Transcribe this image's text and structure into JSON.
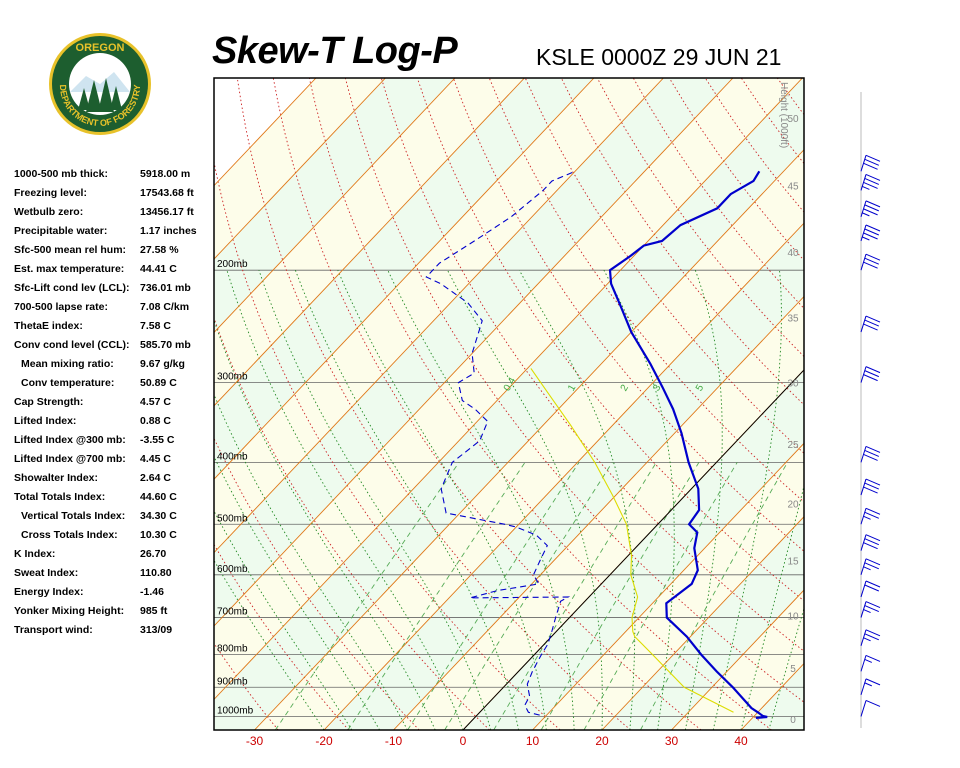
{
  "header": {
    "title": "Skew-T Log-P",
    "station": "KSLE 0000Z 29 JUN 21",
    "logo_top": "OREGON",
    "logo_bottom": "DEPARTMENT OF FORESTRY"
  },
  "indices": [
    {
      "label": "1000-500 mb thick:",
      "value": "5918.00 m"
    },
    {
      "label": "Freezing level:",
      "value": "17543.68 ft"
    },
    {
      "label": "Wetbulb zero:",
      "value": "13456.17 ft"
    },
    {
      "label": "Precipitable water:",
      "value": "1.17 inches"
    },
    {
      "label": "Sfc-500 mean rel hum:",
      "value": "27.58 %"
    },
    {
      "label": "Est. max temperature:",
      "value": "44.41 C"
    },
    {
      "label": "Sfc-Lift cond lev (LCL):",
      "value": "736.01 mb"
    },
    {
      "label": "700-500 lapse rate:",
      "value": "7.08 C/km"
    },
    {
      "label": "ThetaE index:",
      "value": "7.58 C"
    },
    {
      "label": "Conv cond level (CCL):",
      "value": "585.70 mb"
    },
    {
      "label": "Mean mixing ratio:",
      "value": "9.67 g/kg",
      "sub": true
    },
    {
      "label": "Conv temperature:",
      "value": "50.89 C",
      "sub": true
    },
    {
      "label": "Cap Strength:",
      "value": "4.57 C"
    },
    {
      "label": "Lifted Index:",
      "value": "0.88 C"
    },
    {
      "label": "Lifted Index @300 mb:",
      "value": "-3.55 C"
    },
    {
      "label": "Lifted Index @700 mb:",
      "value": "4.45 C"
    },
    {
      "label": "Showalter Index:",
      "value": "2.64 C"
    },
    {
      "label": "Total Totals Index:",
      "value": "44.60 C"
    },
    {
      "label": "Vertical Totals Index:",
      "value": "34.30 C",
      "sub": true
    },
    {
      "label": "Cross Totals Index:",
      "value": "10.30 C",
      "sub": true
    },
    {
      "label": "K Index:",
      "value": "26.70"
    },
    {
      "label": "Sweat Index:",
      "value": "110.80"
    },
    {
      "label": "Energy Index:",
      "value": "-1.46"
    },
    {
      "label": "Yonker Mixing Height:",
      "value": "985 ft"
    },
    {
      "label": "Transport wind:",
      "value": "313/09"
    }
  ],
  "chart_data": {
    "type": "line",
    "subtype": "skew-t log-p diagram",
    "x_ticks": [
      -30,
      -20,
      -10,
      0,
      10,
      20,
      30,
      40
    ],
    "pressure_levels": [
      {
        "p": 200,
        "label": "200mb"
      },
      {
        "p": 300,
        "label": "300mb"
      },
      {
        "p": 400,
        "label": "400mb"
      },
      {
        "p": 500,
        "label": "500mb"
      },
      {
        "p": 600,
        "label": "600mb"
      },
      {
        "p": 700,
        "label": "700mb"
      },
      {
        "p": 800,
        "label": "800mb"
      },
      {
        "p": 900,
        "label": "900mb"
      },
      {
        "p": 1000,
        "label": "1000mb"
      }
    ],
    "height_axis": {
      "label": "Height (1000ft)",
      "ticks": [
        {
          "value": 0,
          "p": 1013
        },
        {
          "value": 5,
          "p": 843
        },
        {
          "value": 10,
          "p": 697
        },
        {
          "value": 15,
          "p": 572
        },
        {
          "value": 20,
          "p": 466
        },
        {
          "value": 25,
          "p": 376
        },
        {
          "value": 30,
          "p": 301
        },
        {
          "value": 35,
          "p": 238
        },
        {
          "value": 40,
          "p": 188
        },
        {
          "value": 45,
          "p": 148
        },
        {
          "value": 50,
          "p": 116
        }
      ]
    },
    "mixing_ratio_labels": [
      "0.4",
      "1",
      "2",
      "3",
      "5"
    ],
    "series": [
      {
        "role": "temperature",
        "color": "#0000cc",
        "style": "solid",
        "points": [
          [
            1005,
            40.5
          ],
          [
            1002,
            42.0
          ],
          [
            998,
            41.2
          ],
          [
            985,
            40.0
          ],
          [
            970,
            38.5
          ],
          [
            900,
            33.0
          ],
          [
            850,
            28.5
          ],
          [
            800,
            24.0
          ],
          [
            750,
            19.5
          ],
          [
            700,
            14.0
          ],
          [
            665,
            12.0
          ],
          [
            620,
            13.0
          ],
          [
            590,
            12.0
          ],
          [
            545,
            8.5
          ],
          [
            515,
            6.8
          ],
          [
            500,
            4.5
          ],
          [
            475,
            4.0
          ],
          [
            440,
            1.0
          ],
          [
            400,
            -4.0
          ],
          [
            360,
            -9.0
          ],
          [
            330,
            -13.5
          ],
          [
            305,
            -18.0
          ],
          [
            280,
            -23.0
          ],
          [
            250,
            -30.0
          ],
          [
            228,
            -35.0
          ],
          [
            210,
            -39.5
          ],
          [
            200,
            -41.5
          ],
          [
            190,
            -40.5
          ],
          [
            183,
            -40.0
          ],
          [
            180,
            -38.0
          ],
          [
            170,
            -37.5
          ],
          [
            160,
            -34.5
          ],
          [
            152,
            -34.5
          ],
          [
            145,
            -33.0
          ],
          [
            140,
            -33.5
          ]
        ]
      },
      {
        "role": "dewpoint",
        "color": "#0000cc",
        "style": "dashed",
        "points": [
          [
            995,
            9.0
          ],
          [
            985,
            7.0
          ],
          [
            960,
            5.5
          ],
          [
            930,
            5.0
          ],
          [
            890,
            3.0
          ],
          [
            850,
            2.0
          ],
          [
            800,
            1.0
          ],
          [
            770,
            0.5
          ],
          [
            740,
            -0.5
          ],
          [
            700,
            -2.0
          ],
          [
            660,
            -3.5
          ],
          [
            650,
            -3.0
          ],
          [
            652,
            -17.0
          ],
          [
            635,
            -14.0
          ],
          [
            620,
            -9.0
          ],
          [
            600,
            -11.0
          ],
          [
            570,
            -12.0
          ],
          [
            540,
            -13.0
          ],
          [
            520,
            -16.0
          ],
          [
            505,
            -20.0
          ],
          [
            500,
            -22.0
          ],
          [
            490,
            -27.0
          ],
          [
            480,
            -32.0
          ],
          [
            440,
            -36.0
          ],
          [
            400,
            -38.0
          ],
          [
            370,
            -37.0
          ],
          [
            345,
            -38.5
          ],
          [
            330,
            -42.0
          ],
          [
            320,
            -45.0
          ],
          [
            300,
            -48.0
          ],
          [
            290,
            -47.0
          ],
          [
            270,
            -50.0
          ],
          [
            240,
            -53.0
          ],
          [
            225,
            -57.5
          ],
          [
            210,
            -64.0
          ],
          [
            205,
            -67.0
          ],
          [
            195,
            -67.0
          ],
          [
            180,
            -65.0
          ],
          [
            165,
            -63.0
          ],
          [
            150,
            -62.0
          ],
          [
            145,
            -62.0
          ],
          [
            140,
            -60.0
          ]
        ]
      },
      {
        "role": "parcel",
        "color": "#dddd00",
        "style": "solid",
        "points": [
          [
            985,
            36.5
          ],
          [
            900,
            26.0
          ],
          [
            800,
            17.0
          ],
          [
            750,
            12.0
          ],
          [
            736,
            11.0
          ],
          [
            700,
            9.0
          ],
          [
            650,
            7.0
          ],
          [
            600,
            3.0
          ],
          [
            560,
            0.5
          ],
          [
            500,
            -4.5
          ],
          [
            450,
            -10.5
          ],
          [
            400,
            -17.5
          ],
          [
            350,
            -26.0
          ],
          [
            310,
            -34.0
          ],
          [
            285,
            -39.5
          ]
        ]
      }
    ],
    "wind_barbs": [
      {
        "p": 1000,
        "speed_kt": 10
      },
      {
        "p": 925,
        "speed_kt": 15
      },
      {
        "p": 850,
        "speed_kt": 15
      },
      {
        "p": 775,
        "speed_kt": 25
      },
      {
        "p": 700,
        "speed_kt": 25
      },
      {
        "p": 650,
        "speed_kt": 20
      },
      {
        "p": 600,
        "speed_kt": 25
      },
      {
        "p": 550,
        "speed_kt": 30
      },
      {
        "p": 500,
        "speed_kt": 25
      },
      {
        "p": 450,
        "speed_kt": 30
      },
      {
        "p": 400,
        "speed_kt": 30
      },
      {
        "p": 300,
        "speed_kt": 30
      },
      {
        "p": 250,
        "speed_kt": 30
      },
      {
        "p": 200,
        "speed_kt": 30
      },
      {
        "p": 180,
        "speed_kt": 35
      },
      {
        "p": 165,
        "speed_kt": 35
      },
      {
        "p": 150,
        "speed_kt": 35
      },
      {
        "p": 140,
        "speed_kt": 30
      }
    ]
  }
}
